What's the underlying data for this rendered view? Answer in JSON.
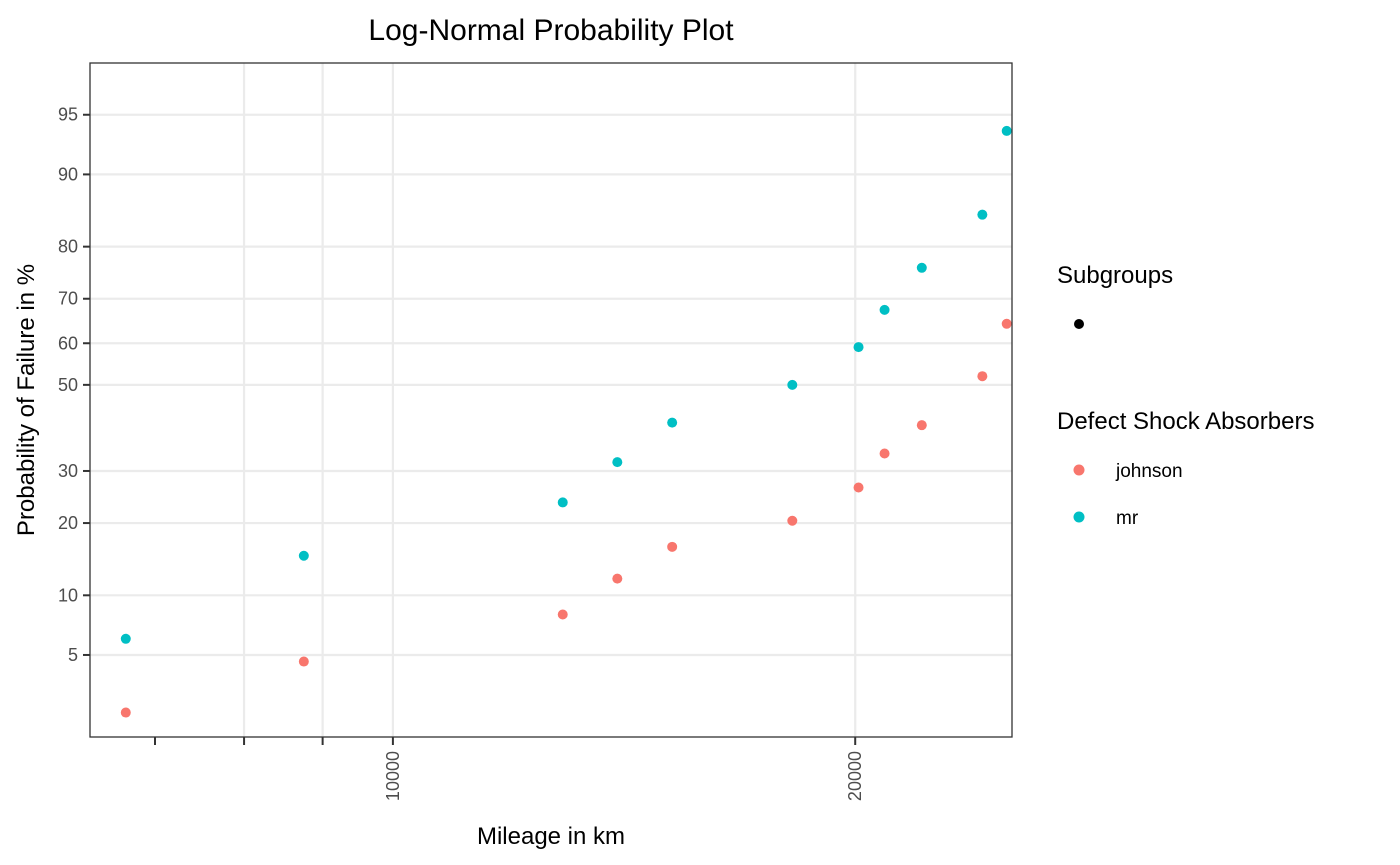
{
  "chart_data": {
    "type": "scatter",
    "title": "Log-Normal Probability Plot",
    "xlabel": "Mileage in km",
    "ylabel": "Probability of Failure in %",
    "x_scale": "log",
    "y_scale": "normal-probability",
    "xlim": [
      6350,
      25300
    ],
    "ylim": [
      1.6,
      97.5
    ],
    "x_ticks": [
      10000,
      20000
    ],
    "x_tick_labels": [
      "10000",
      "20000"
    ],
    "x_minor_ticks": [
      7000,
      8000,
      9000
    ],
    "x_minor_grid": [
      8000,
      9000
    ],
    "y_ticks": [
      5,
      10,
      20,
      30,
      50,
      60,
      70,
      80,
      90,
      95
    ],
    "y_tick_labels": [
      "5",
      "10",
      "20",
      "30",
      "50",
      "60",
      "70",
      "80",
      "90",
      "95"
    ],
    "grid": true,
    "legend_position": "right",
    "legends": [
      {
        "title": "Subgroups",
        "entries": [
          {
            "label": "",
            "color": "#000000"
          }
        ]
      },
      {
        "title": "Defect Shock Absorbers",
        "entries": [
          {
            "label": "johnson",
            "color": "#F8766D"
          },
          {
            "label": "mr",
            "color": "#00BFC4"
          }
        ]
      }
    ],
    "series": [
      {
        "name": "johnson",
        "color": "#F8766D",
        "points": [
          {
            "x": 6700,
            "y": 2.3
          },
          {
            "x": 8750,
            "y": 4.6
          },
          {
            "x": 12900,
            "y": 8.1
          },
          {
            "x": 14000,
            "y": 11.9
          },
          {
            "x": 15200,
            "y": 16.2
          },
          {
            "x": 18200,
            "y": 20.4
          },
          {
            "x": 20100,
            "y": 26.6
          },
          {
            "x": 20900,
            "y": 33.8
          },
          {
            "x": 22100,
            "y": 40.3
          },
          {
            "x": 24200,
            "y": 52.1
          },
          {
            "x": 25100,
            "y": 64.5
          }
        ]
      },
      {
        "name": "mr",
        "color": "#00BFC4",
        "points": [
          {
            "x": 6700,
            "y": 6.1
          },
          {
            "x": 8750,
            "y": 14.9
          },
          {
            "x": 12900,
            "y": 23.7
          },
          {
            "x": 14000,
            "y": 31.9
          },
          {
            "x": 15200,
            "y": 40.9
          },
          {
            "x": 18200,
            "y": 50.0
          },
          {
            "x": 20100,
            "y": 59.1
          },
          {
            "x": 20900,
            "y": 67.6
          },
          {
            "x": 22100,
            "y": 76.2
          },
          {
            "x": 24200,
            "y": 85.0
          },
          {
            "x": 25100,
            "y": 93.9
          }
        ]
      }
    ]
  }
}
